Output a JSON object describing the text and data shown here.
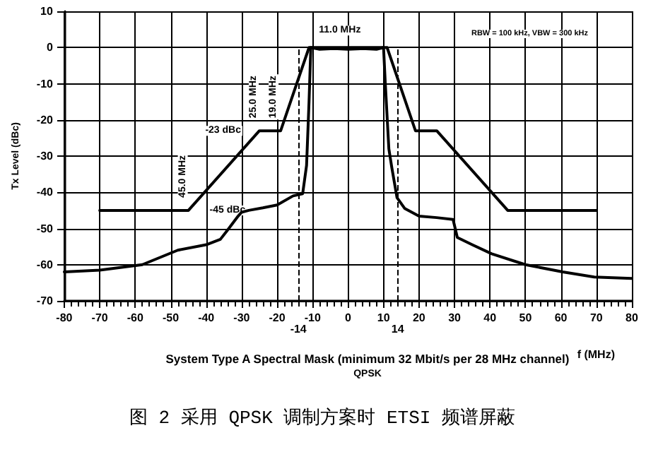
{
  "chart_data": {
    "type": "line",
    "title": "System Type A Spectral Mask (minimum 32 Mbit/s per 28 MHz channel)",
    "subtitle": "QPSK",
    "xlabel": "f (MHz)",
    "ylabel": "Tx Level (dBc)",
    "x": [
      -70,
      -45,
      -25,
      -19,
      -11,
      11,
      19,
      25,
      45,
      70
    ],
    "series": [
      {
        "color": "#000000",
        "values": [
          -45,
          -45,
          -23,
          -23,
          0,
          0,
          -23,
          -23,
          -45,
          -45
        ]
      },
      {
        "color": "#000000",
        "x": [
          -80,
          -70,
          -58,
          -48,
          -40,
          -36,
          -34,
          -31,
          -30,
          -28,
          -24,
          -20,
          -15.5,
          -12.8,
          -11.7,
          -11,
          -10.5,
          -8,
          -4,
          0,
          4,
          8,
          10,
          10.5,
          11.5,
          12.3,
          13.8,
          16,
          20,
          25,
          29.6,
          30.8,
          35,
          40.5,
          50,
          60.5,
          69.4,
          80
        ],
        "values": [
          -62,
          -61.5,
          -60,
          -56,
          -54.5,
          -53,
          -50.5,
          -46.6,
          -45.5,
          -45,
          -44.3,
          -43.5,
          -41,
          -40.4,
          -32.6,
          -15,
          0,
          -0.5,
          -0.3,
          -0.5,
          -0.3,
          -0.5,
          0,
          -10,
          -28,
          -33,
          -41.5,
          -44.5,
          -46.6,
          -47,
          -47.5,
          -52.5,
          -54.5,
          -57,
          -60,
          -62,
          -63.4,
          -63.8
        ]
      }
    ],
    "xlim": [
      -80,
      80
    ],
    "xticks": [
      -80,
      -70,
      -60,
      -50,
      -40,
      -30,
      -20,
      -10,
      0,
      10,
      20,
      30,
      40,
      50,
      60,
      70,
      80
    ],
    "ylim": [
      -70,
      10
    ],
    "yticks": [
      -70,
      -60,
      -50,
      -40,
      -30,
      -20,
      -10,
      0,
      10
    ],
    "grid": true,
    "marker": "none",
    "line_style": "solid",
    "ref_lines": [
      {
        "axis": "x",
        "value": -14,
        "label": "-14",
        "color": "#000000",
        "line_style": "dashed"
      },
      {
        "axis": "x",
        "value": 14,
        "label": "14",
        "color": "#000000",
        "line_style": "dashed"
      }
    ],
    "annotations": [
      {
        "text": "11.0 MHz",
        "x": -11,
        "y": 0
      },
      {
        "text": "25.0 MHz",
        "x": -25,
        "y": -23
      },
      {
        "text": "19.0 MHz",
        "x": -19,
        "y": -23
      },
      {
        "text": "-23 dBc",
        "x": -25,
        "y": -23
      },
      {
        "text": "45.0 MHz",
        "x": -45,
        "y": -45
      },
      {
        "text": "-45 dBc",
        "x": -45,
        "y": -45
      },
      "RBW = 100 kHz, VBW = 300 kHz",
      "图 2 采用 QPSK 调制方案时 ETSI 频谱屏蔽"
    ]
  }
}
